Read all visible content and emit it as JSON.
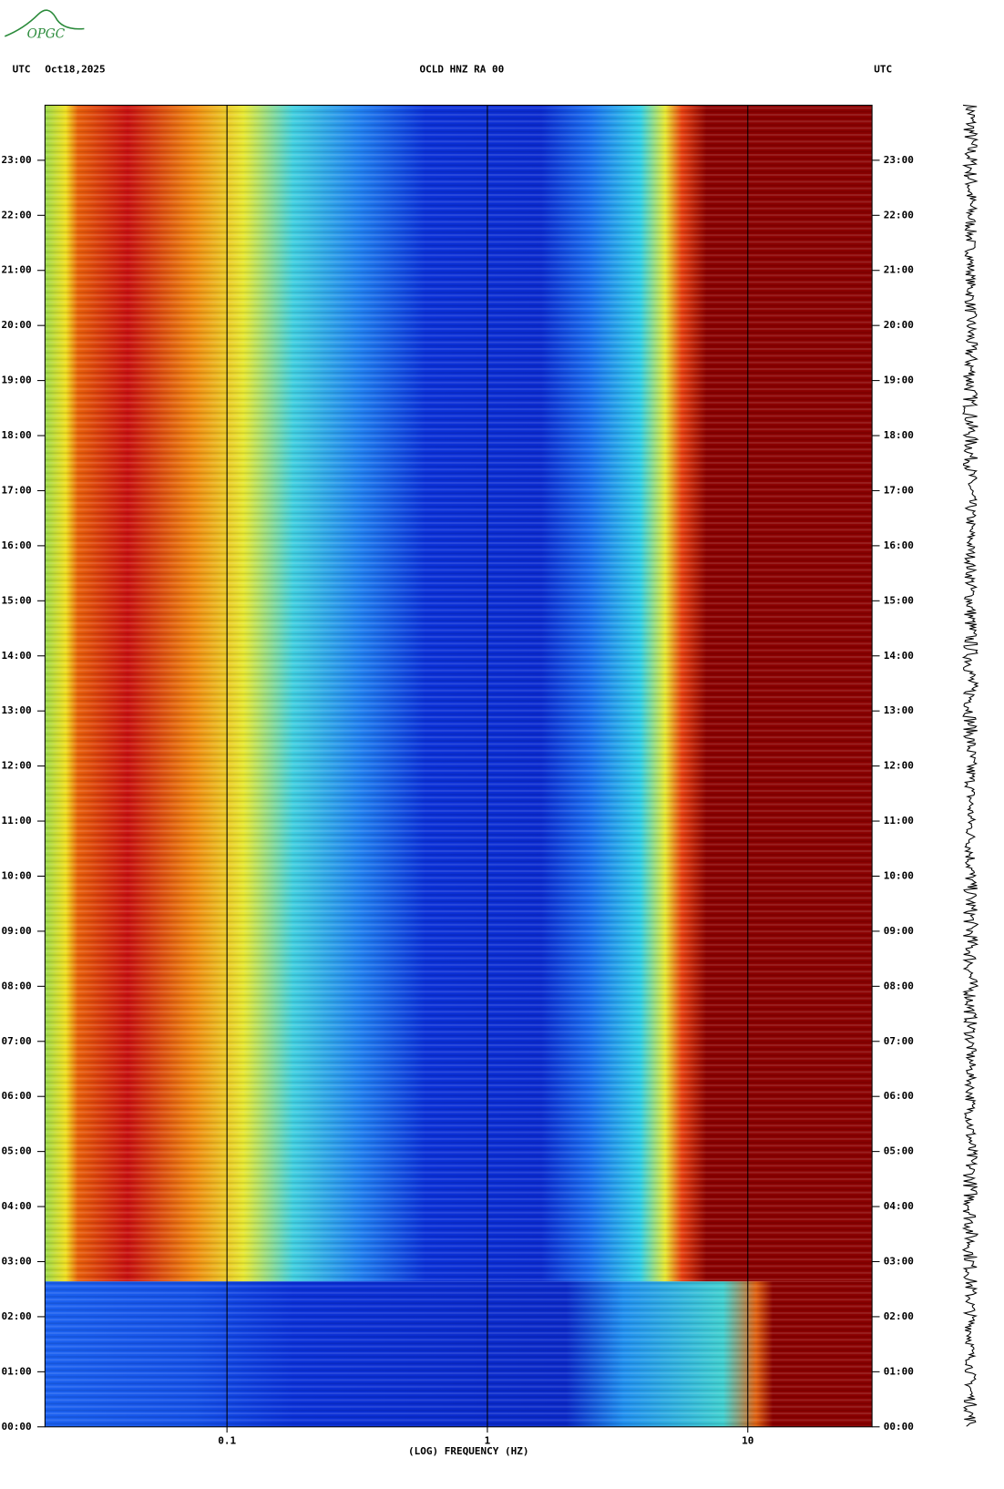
{
  "logo": "OPGC",
  "chart_data": {
    "type": "spectrogram",
    "title": "OCLD HNZ RA 00",
    "left_label": "UTC",
    "date": "Oct18,2025",
    "right_label": "UTC",
    "x_label": "(LOG) FREQUENCY (HZ)",
    "xlim": [
      0.02,
      30
    ],
    "x_log": true,
    "xticks": [
      {
        "value": 0.1,
        "label": "0.1"
      },
      1,
      10
    ],
    "ylim": [
      0,
      24
    ],
    "yticks": [
      {
        "value": 0,
        "label": "00:00"
      },
      {
        "value": 1,
        "label": "01:00"
      },
      {
        "value": 2,
        "label": "02:00"
      },
      {
        "value": 3,
        "label": "03:00"
      },
      {
        "value": 4,
        "label": "04:00"
      },
      {
        "value": 5,
        "label": "05:00"
      },
      {
        "value": 6,
        "label": "06:00"
      },
      {
        "value": 7,
        "label": "07:00"
      },
      {
        "value": 8,
        "label": "08:00"
      },
      {
        "value": 9,
        "label": "09:00"
      },
      {
        "value": 10,
        "label": "10:00"
      },
      {
        "value": 11,
        "label": "11:00"
      },
      {
        "value": 12,
        "label": "12:00"
      },
      {
        "value": 13,
        "label": "13:00"
      },
      {
        "value": 14,
        "label": "14:00"
      },
      {
        "value": 15,
        "label": "15:00"
      },
      {
        "value": 16,
        "label": "16:00"
      },
      {
        "value": 17,
        "label": "17:00"
      },
      {
        "value": 18,
        "label": "18:00"
      },
      {
        "value": 19,
        "label": "19:00"
      },
      {
        "value": 20,
        "label": "20:00"
      },
      {
        "value": 21,
        "label": "21:00"
      },
      {
        "value": 22,
        "label": "22:00"
      },
      {
        "value": 23,
        "label": "23:00"
      }
    ]
  }
}
